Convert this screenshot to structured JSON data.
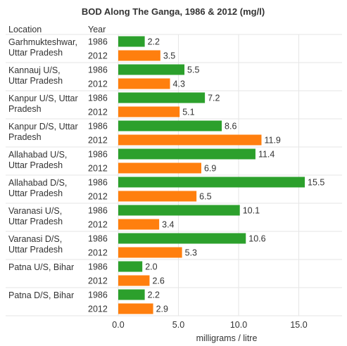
{
  "chart_data": {
    "type": "bar",
    "orientation": "horizontal",
    "title": "BOD Along The Ganga, 1986 & 2012 (mg/l)",
    "column_headers": {
      "location": "Location",
      "year": "Year"
    },
    "xlabel": "milligrams / litre",
    "xlim": [
      0,
      17.5
    ],
    "xticks": [
      "0.0",
      "5.0",
      "10.0",
      "15.0"
    ],
    "xtick_values": [
      0,
      5,
      10,
      15
    ],
    "grid": true,
    "legend": "none",
    "years": [
      "1986",
      "2012"
    ],
    "colors": {
      "1986": "#2ca02c",
      "2012": "#ff7f0e"
    },
    "groups": [
      {
        "location": [
          "Garhmukteshwar,",
          "Uttar Pradesh"
        ],
        "values": [
          2.2,
          3.5
        ]
      },
      {
        "location": [
          "Kannauj U/S,",
          "Uttar Pradesh"
        ],
        "values": [
          5.5,
          4.3
        ]
      },
      {
        "location": [
          "Kanpur U/S, Uttar",
          "Pradesh"
        ],
        "values": [
          7.2,
          5.1
        ]
      },
      {
        "location": [
          "Kanpur D/S, Uttar",
          "Pradesh"
        ],
        "values": [
          8.6,
          11.9
        ]
      },
      {
        "location": [
          "Allahabad U/S,",
          "Uttar Pradesh"
        ],
        "values": [
          11.4,
          6.9
        ]
      },
      {
        "location": [
          "Allahabad D/S,",
          "Uttar Pradesh"
        ],
        "values": [
          15.5,
          6.5
        ]
      },
      {
        "location": [
          "Varanasi U/S,",
          "Uttar Pradesh"
        ],
        "values": [
          10.1,
          3.4
        ]
      },
      {
        "location": [
          "Varanasi D/S,",
          "Uttar Pradesh"
        ],
        "values": [
          10.6,
          5.3
        ]
      },
      {
        "location": [
          "Patna U/S, Bihar"
        ],
        "values": [
          2.0,
          2.6
        ]
      },
      {
        "location": [
          "Patna D/S, Bihar"
        ],
        "values": [
          2.2,
          2.9
        ]
      }
    ]
  }
}
